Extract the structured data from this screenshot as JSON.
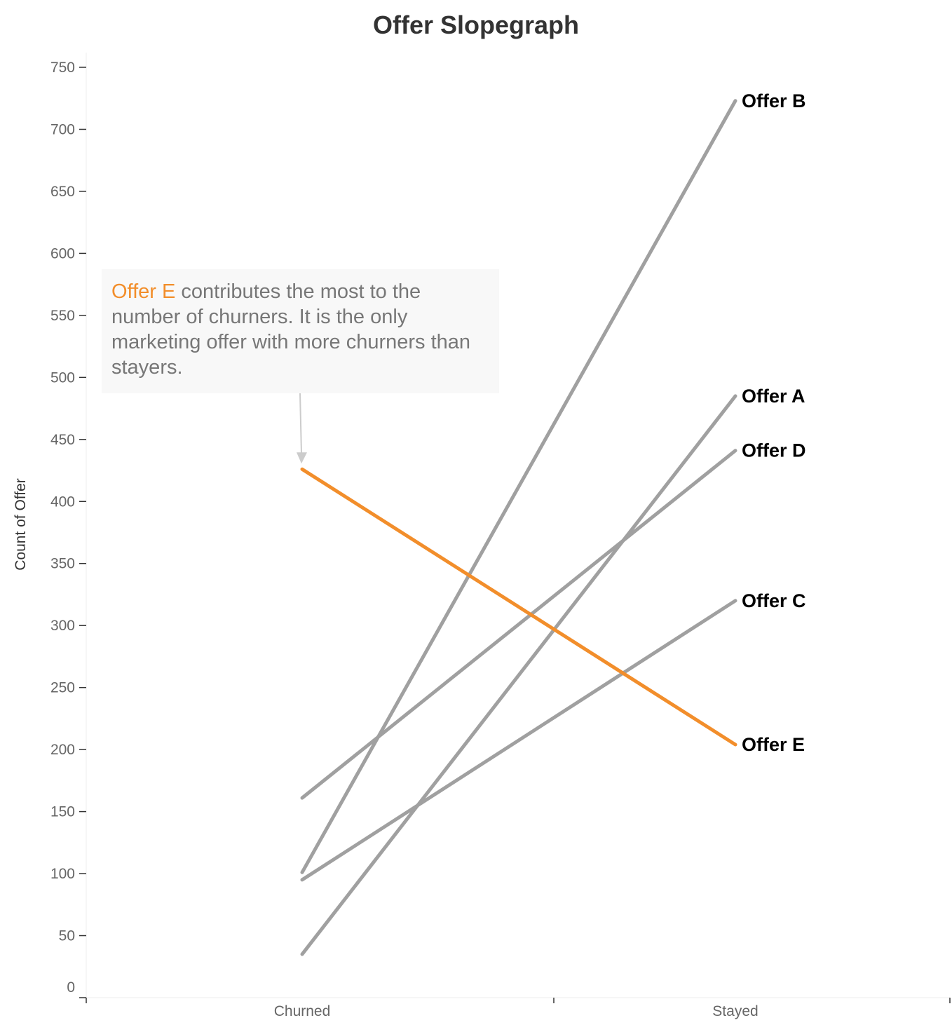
{
  "chart_data": {
    "type": "line",
    "title": "Offer Slopegraph",
    "xlabel": "",
    "ylabel": "Count of Offer",
    "categories": [
      "Churned",
      "Stayed"
    ],
    "ylim": [
      0,
      750
    ],
    "yticks": [
      0,
      50,
      100,
      150,
      200,
      250,
      300,
      350,
      400,
      450,
      500,
      550,
      600,
      650,
      700,
      750
    ],
    "series": [
      {
        "name": "Offer B",
        "values": [
          101,
          723
        ],
        "color": "#a0a0a0"
      },
      {
        "name": "Offer A",
        "values": [
          35,
          485
        ],
        "color": "#a0a0a0"
      },
      {
        "name": "Offer D",
        "values": [
          161,
          441
        ],
        "color": "#a0a0a0"
      },
      {
        "name": "Offer C",
        "values": [
          95,
          320
        ],
        "color": "#a0a0a0"
      },
      {
        "name": "Offer E",
        "values": [
          426,
          204
        ],
        "color": "#f28e2b"
      }
    ],
    "annotation": {
      "highlight": "Offer E",
      "text": "contributes the most to the number of churners. It is the only marketing offer with more churners than stayers."
    },
    "grid": false,
    "legend": "none"
  }
}
